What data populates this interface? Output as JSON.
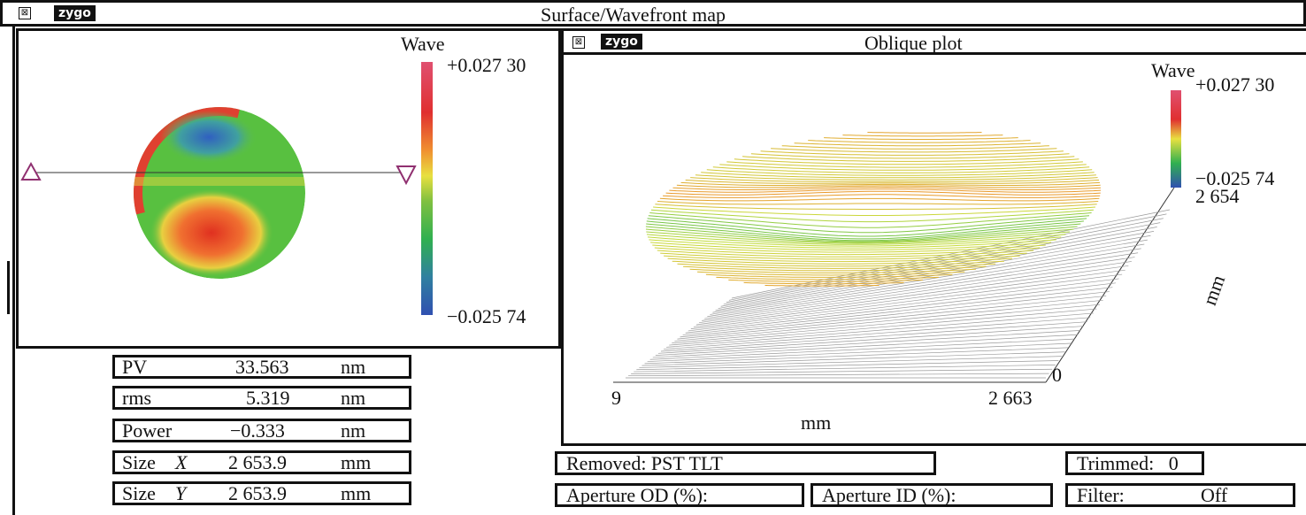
{
  "main_window": {
    "title": "Surface/Wavefront map",
    "logo": "zygo",
    "close_icon": "close-box-icon"
  },
  "surface_map": {
    "colorbar_label": "Wave",
    "max": "+0.027 30",
    "min": "−0.025 74"
  },
  "oblique": {
    "title": "Oblique plot",
    "logo": "zygo",
    "colorbar_label": "Wave",
    "max": "+0.027 30",
    "min": "−0.025 74",
    "extra": "2 654",
    "x_start": "9",
    "x_end": "2 663",
    "x_label": "mm",
    "y_start": "0",
    "y_label": "mm"
  },
  "stats": [
    {
      "label": "PV",
      "value": "33.563",
      "unit": "nm"
    },
    {
      "label": "rms",
      "value": "5.319",
      "unit": "nm"
    },
    {
      "label": "Power",
      "value": "−0.333",
      "unit": "nm"
    },
    {
      "label": "Size",
      "axis": "X",
      "value": "2 653.9",
      "unit": "mm"
    },
    {
      "label": "Size",
      "axis": "Y",
      "value": "2 653.9",
      "unit": "mm"
    }
  ],
  "bottom": {
    "removed": "Removed: PST TLT",
    "trimmed_label": "Trimmed:",
    "trimmed_value": "0",
    "aperture_od": "Aperture OD (%):",
    "aperture_id": "Aperture ID (%):",
    "filter_label": "Filter:",
    "filter_value": "Off"
  },
  "colors": {
    "max": "#e05070",
    "min": "#3050b0"
  }
}
